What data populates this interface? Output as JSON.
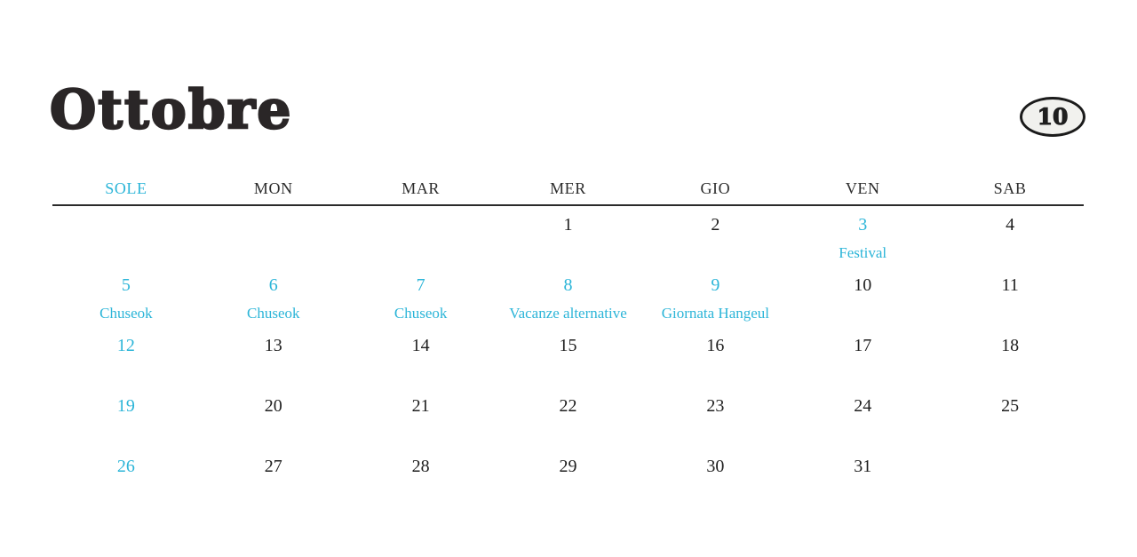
{
  "colors": {
    "accent": "#2cb5d8",
    "text": "#242021",
    "badge_fill": "#f1f1ee",
    "rule": "#2a2a2a"
  },
  "header": {
    "title": "Ottobre",
    "month_badge": "10"
  },
  "calendar": {
    "day_headers": [
      {
        "label": "SOLE",
        "accent": true
      },
      {
        "label": "MON",
        "accent": false
      },
      {
        "label": "MAR",
        "accent": false
      },
      {
        "label": "MER",
        "accent": false
      },
      {
        "label": "GIO",
        "accent": false
      },
      {
        "label": "VEN",
        "accent": false
      },
      {
        "label": "SAB",
        "accent": false
      }
    ],
    "weeks": [
      [
        {
          "day": ""
        },
        {
          "day": ""
        },
        {
          "day": ""
        },
        {
          "day": "1"
        },
        {
          "day": "2"
        },
        {
          "day": "3",
          "accent": true,
          "event": "Festival"
        },
        {
          "day": "4"
        }
      ],
      [
        {
          "day": "5",
          "accent": true,
          "event": "Chuseok"
        },
        {
          "day": "6",
          "accent": true,
          "event": "Chuseok"
        },
        {
          "day": "7",
          "accent": true,
          "event": "Chuseok"
        },
        {
          "day": "8",
          "accent": true,
          "event": "Vacanze alternative"
        },
        {
          "day": "9",
          "accent": true,
          "event": "Giornata Hangeul"
        },
        {
          "day": "10"
        },
        {
          "day": "11"
        }
      ],
      [
        {
          "day": "12",
          "accent": true
        },
        {
          "day": "13"
        },
        {
          "day": "14"
        },
        {
          "day": "15"
        },
        {
          "day": "16"
        },
        {
          "day": "17"
        },
        {
          "day": "18"
        }
      ],
      [
        {
          "day": "19",
          "accent": true
        },
        {
          "day": "20"
        },
        {
          "day": "21"
        },
        {
          "day": "22"
        },
        {
          "day": "23"
        },
        {
          "day": "24"
        },
        {
          "day": "25"
        }
      ],
      [
        {
          "day": "26",
          "accent": true
        },
        {
          "day": "27"
        },
        {
          "day": "28"
        },
        {
          "day": "29"
        },
        {
          "day": "30"
        },
        {
          "day": "31"
        },
        {
          "day": ""
        }
      ]
    ]
  }
}
